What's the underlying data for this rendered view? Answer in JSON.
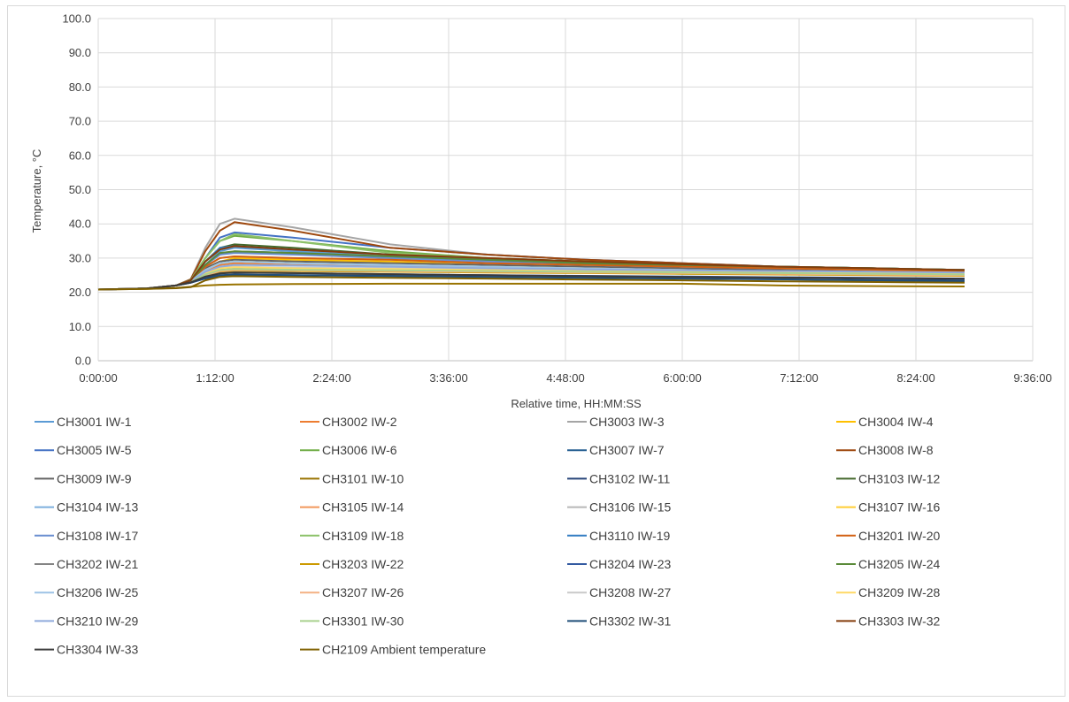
{
  "chart_data": {
    "type": "line",
    "title": "",
    "xlabel": "Relative time, HH:MM:SS",
    "ylabel": "Temperature, °C",
    "ylim": [
      0,
      100
    ],
    "xlim_hours": [
      0,
      9.6
    ],
    "y_ticks": [
      "0.0",
      "10.0",
      "20.0",
      "30.0",
      "40.0",
      "50.0",
      "60.0",
      "70.0",
      "80.0",
      "90.0",
      "100.0"
    ],
    "x_ticks": [
      {
        "label": "0:00:00",
        "hours": 0
      },
      {
        "label": "1:12:00",
        "hours": 1.2
      },
      {
        "label": "2:24:00",
        "hours": 2.4
      },
      {
        "label": "3:36:00",
        "hours": 3.6
      },
      {
        "label": "4:48:00",
        "hours": 4.8
      },
      {
        "label": "6:00:00",
        "hours": 6.0
      },
      {
        "label": "7:12:00",
        "hours": 7.2
      },
      {
        "label": "8:24:00",
        "hours": 8.4
      },
      {
        "label": "9:36:00",
        "hours": 9.6
      }
    ],
    "grid": "both",
    "legend_position": "bottom",
    "x_hours": [
      0,
      0.5,
      0.8,
      0.95,
      1.1,
      1.25,
      1.4,
      2.0,
      3.0,
      4.0,
      5.0,
      6.0,
      7.0,
      8.0,
      8.9
    ],
    "series": [
      {
        "name": "CH3001 IW-1",
        "color": "#5b9bd5",
        "values": [
          20.8,
          21.1,
          22.0,
          23.5,
          28,
          32,
          33,
          32,
          30.5,
          29.5,
          28.5,
          27.5,
          27,
          26.5,
          26
        ]
      },
      {
        "name": "CH3002 IW-2",
        "color": "#ed7d31",
        "values": [
          20.8,
          21.1,
          22.0,
          23.2,
          26,
          28,
          28.5,
          28,
          27.5,
          27,
          26.5,
          26,
          25.5,
          25.3,
          25
        ]
      },
      {
        "name": "CH3003 IW-3",
        "color": "#a5a5a5",
        "values": [
          20.8,
          21.1,
          22.0,
          23.8,
          33,
          40,
          41.5,
          39,
          34,
          31,
          29.5,
          28.5,
          27.5,
          27,
          26.5
        ]
      },
      {
        "name": "CH3004 IW-4",
        "color": "#ffc000",
        "values": [
          20.8,
          21.1,
          22.0,
          23.3,
          27,
          29,
          30,
          29.5,
          29,
          28,
          27.5,
          27,
          26.5,
          26,
          25.8
        ]
      },
      {
        "name": "CH3005 IW-5",
        "color": "#4472c4",
        "values": [
          20.8,
          21.1,
          22.0,
          23.7,
          30,
          36,
          37.5,
          36,
          33,
          31,
          29.5,
          28.5,
          27.5,
          27,
          26.5
        ]
      },
      {
        "name": "CH3006 IW-6",
        "color": "#70ad47",
        "values": [
          20.8,
          21.1,
          22.0,
          23.6,
          30,
          35,
          36.5,
          35,
          32,
          30,
          29,
          28,
          27.5,
          27,
          26.5
        ]
      },
      {
        "name": "CH3007 IW-7",
        "color": "#255e91",
        "values": [
          20.8,
          21.1,
          22.0,
          23.4,
          28,
          31,
          32,
          31.5,
          30,
          29,
          28,
          27.5,
          27,
          26.5,
          26
        ]
      },
      {
        "name": "CH3008 IW-8",
        "color": "#9e480e",
        "values": [
          20.8,
          21.1,
          22.0,
          23.8,
          32,
          38,
          40.5,
          38,
          33,
          31,
          29.5,
          28.5,
          27.5,
          27,
          26.5
        ]
      },
      {
        "name": "CH3009 IW-9",
        "color": "#636363",
        "values": [
          20.8,
          21.1,
          22.0,
          23.3,
          27,
          29,
          29.5,
          29,
          28.5,
          28,
          27.5,
          27,
          26.5,
          26,
          25.5
        ]
      },
      {
        "name": "CH3101 IW-10",
        "color": "#997300",
        "values": [
          20.8,
          21.0,
          21.3,
          21.6,
          22.0,
          22.2,
          22.3,
          22.4,
          22.5,
          22.5,
          22.5,
          22.5,
          22.0,
          21.8,
          21.7
        ]
      },
      {
        "name": "CH3102 IW-11",
        "color": "#264478",
        "values": [
          20.8,
          21.1,
          22.0,
          22.8,
          24,
          24.8,
          25.1,
          25,
          24.7,
          24.5,
          24.2,
          24,
          23.8,
          23.6,
          23.5
        ]
      },
      {
        "name": "CH3103 IW-12",
        "color": "#43682b",
        "values": [
          20.8,
          21.1,
          22.0,
          23.5,
          29,
          33,
          34,
          33,
          31,
          29.5,
          28.5,
          28,
          27.5,
          27,
          26.5
        ]
      },
      {
        "name": "CH3104 IW-13",
        "color": "#7cafdd",
        "values": [
          20.8,
          21.1,
          22.0,
          23.2,
          26.5,
          28.5,
          29,
          28.5,
          28,
          27.5,
          27,
          26.5,
          26,
          25.7,
          25.5
        ]
      },
      {
        "name": "CH3105 IW-14",
        "color": "#f1975a",
        "values": [
          20.8,
          21.1,
          22.0,
          23.1,
          25.5,
          27,
          27.5,
          27,
          26.7,
          26.3,
          26,
          25.7,
          25.5,
          25.2,
          25
        ]
      },
      {
        "name": "CH3106 IW-15",
        "color": "#b7b7b7",
        "values": [
          20.8,
          21.1,
          22.0,
          23.3,
          27.5,
          30,
          30.5,
          30,
          29.5,
          28.5,
          28,
          27.5,
          27,
          26.5,
          26
        ]
      },
      {
        "name": "CH3107 IW-16",
        "color": "#ffcd33",
        "values": [
          20.8,
          21.1,
          22.0,
          23.2,
          26.5,
          28.5,
          29,
          28.5,
          28,
          27.5,
          27,
          26.5,
          26,
          25.7,
          25.5
        ]
      },
      {
        "name": "CH3108 IW-17",
        "color": "#698ed0",
        "values": [
          20.8,
          21.1,
          22.0,
          23.4,
          28,
          31,
          31.5,
          31,
          30,
          29,
          28,
          27.5,
          27,
          26.5,
          26
        ]
      },
      {
        "name": "CH3109 IW-18",
        "color": "#8cc168",
        "values": [
          20.8,
          21.1,
          22.0,
          23.6,
          30,
          35,
          37,
          35,
          31.5,
          30,
          29,
          28,
          27.5,
          27,
          26.5
        ]
      },
      {
        "name": "CH3110 IW-19",
        "color": "#327dc2",
        "values": [
          20.8,
          21.1,
          22.0,
          23.5,
          29,
          33,
          33.5,
          32.5,
          31,
          29.5,
          28.5,
          28,
          27.5,
          27,
          26.5
        ]
      },
      {
        "name": "CH3201 IW-20",
        "color": "#d26012",
        "values": [
          20.8,
          21.1,
          22.0,
          23.3,
          27.5,
          30,
          30.5,
          30,
          29.5,
          28.5,
          28,
          27.5,
          27,
          26.5,
          26
        ]
      },
      {
        "name": "CH3202 IW-21",
        "color": "#848484",
        "values": [
          20.8,
          21.1,
          22.0,
          23.1,
          25.5,
          26.8,
          27,
          26.8,
          26.5,
          26.2,
          26,
          25.8,
          25.6,
          25.4,
          25.2
        ]
      },
      {
        "name": "CH3203 IW-22",
        "color": "#cc9a00",
        "values": [
          20.8,
          21.1,
          22.0,
          23.0,
          25,
          26,
          26.3,
          26.2,
          26,
          25.8,
          25.6,
          25.4,
          25.2,
          25,
          24.8
        ]
      },
      {
        "name": "CH3204 IW-23",
        "color": "#335aa1",
        "values": [
          20.8,
          21.1,
          22.0,
          22.9,
          24.5,
          25.5,
          25.8,
          25.6,
          25.3,
          25,
          24.8,
          24.6,
          24.4,
          24.2,
          24
        ]
      },
      {
        "name": "CH3205 IW-24",
        "color": "#5a8a39",
        "values": [
          20.8,
          21.1,
          22.0,
          23.4,
          28,
          31.5,
          32,
          31.5,
          30.5,
          29.5,
          28.5,
          28,
          27.5,
          27,
          26.5
        ]
      },
      {
        "name": "CH3206 IW-25",
        "color": "#9dc3e6",
        "values": [
          20.8,
          21.1,
          22.0,
          23.2,
          26.5,
          28.5,
          29,
          28.5,
          28,
          27.5,
          27,
          26.5,
          26,
          25.7,
          25.5
        ]
      },
      {
        "name": "CH3207 IW-26",
        "color": "#f4b183",
        "values": [
          20.8,
          21.1,
          22.0,
          23.0,
          25,
          26.2,
          26.5,
          26.4,
          26.2,
          26,
          25.8,
          25.6,
          25.4,
          25.2,
          25
        ]
      },
      {
        "name": "CH3208 IW-27",
        "color": "#c9c9c9",
        "values": [
          20.8,
          21.1,
          22.0,
          23.1,
          25.8,
          27.2,
          27.5,
          27.2,
          27,
          26.7,
          26.4,
          26.2,
          26,
          25.8,
          25.5
        ]
      },
      {
        "name": "CH3209 IW-28",
        "color": "#ffd966",
        "values": [
          20.8,
          21.1,
          22.0,
          23.0,
          25.5,
          27,
          27.3,
          27,
          26.8,
          26.5,
          26.2,
          26,
          25.8,
          25.6,
          25.4
        ]
      },
      {
        "name": "CH3210 IW-29",
        "color": "#8faadc",
        "values": [
          20.8,
          21.1,
          22.0,
          23.1,
          26,
          27.5,
          28,
          27.8,
          27.5,
          27,
          26.7,
          26.4,
          26.2,
          26,
          25.8
        ]
      },
      {
        "name": "CH3301 IW-30",
        "color": "#a9d18e",
        "values": [
          20.8,
          21.1,
          22.0,
          23.0,
          25.2,
          26.5,
          26.8,
          26.6,
          26.4,
          26.2,
          26,
          25.8,
          25.6,
          25.4,
          25.2
        ]
      },
      {
        "name": "CH3302 IW-31",
        "color": "#1f4e79",
        "values": [
          20.8,
          21.1,
          22.0,
          22.8,
          24.2,
          25,
          25.2,
          25,
          24.8,
          24.5,
          24.2,
          24,
          23.8,
          23.4,
          23.2
        ]
      },
      {
        "name": "CH3303 IW-32",
        "color": "#843c0c",
        "values": [
          20.8,
          21.1,
          22.0,
          23.5,
          29,
          32.5,
          33.5,
          32.5,
          31,
          30,
          29,
          28.2,
          27.5,
          27,
          26.5
        ]
      },
      {
        "name": "CH3304 IW-33",
        "color": "#3a3a3a",
        "values": [
          20.8,
          21.1,
          22.0,
          22.9,
          24.6,
          25.5,
          25.8,
          25.6,
          25.3,
          25,
          24.7,
          24.5,
          24.3,
          24.1,
          24
        ]
      },
      {
        "name": "CH2109 Ambient temperature",
        "color": "#7f6000",
        "values": [
          20.8,
          21.0,
          21.2,
          21.5,
          23.5,
          24.5,
          24.7,
          24.5,
          24.2,
          24,
          23.7,
          23.5,
          23.2,
          23,
          22.8
        ]
      }
    ]
  }
}
